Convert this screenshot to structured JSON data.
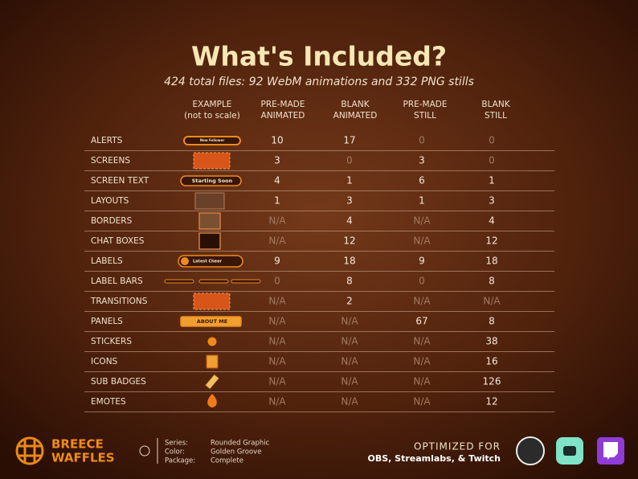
{
  "header": {
    "title": "What's Included?",
    "subtitle": "424 total files: 92 WebM animations and 332 PNG stills"
  },
  "table": {
    "columns": [
      [
        "EXAMPLE",
        "(not to scale)"
      ],
      [
        "PRE-MADE",
        "ANIMATED"
      ],
      [
        "BLANK",
        "ANIMATED"
      ],
      [
        "PRE-MADE",
        "STILL"
      ],
      [
        "BLANK",
        "STILL"
      ]
    ],
    "rows": [
      {
        "label": "ALERTS",
        "example_text": "New Follower",
        "values": [
          10,
          17,
          0,
          0
        ]
      },
      {
        "label": "SCREENS",
        "values": [
          3,
          0,
          3,
          0
        ]
      },
      {
        "label": "SCREEN TEXT",
        "example_text": "Starting Soon",
        "values": [
          4,
          1,
          6,
          1
        ]
      },
      {
        "label": "LAYOUTS",
        "values": [
          1,
          3,
          1,
          3
        ]
      },
      {
        "label": "BORDERS",
        "values": [
          "N/A",
          4,
          "N/A",
          4
        ]
      },
      {
        "label": "CHAT BOXES",
        "values": [
          "N/A",
          12,
          "N/A",
          12
        ]
      },
      {
        "label": "LABELS",
        "example_text": "Latest Cheer",
        "values": [
          9,
          18,
          9,
          18
        ]
      },
      {
        "label": "LABEL BARS",
        "values": [
          0,
          8,
          0,
          8
        ]
      },
      {
        "label": "TRANSITIONS",
        "values": [
          "N/A",
          2,
          "N/A",
          "N/A"
        ]
      },
      {
        "label": "PANELS",
        "example_text": "ABOUT ME",
        "values": [
          "N/A",
          "N/A",
          67,
          8
        ]
      },
      {
        "label": "STICKERS",
        "values": [
          "N/A",
          "N/A",
          "N/A",
          38
        ]
      },
      {
        "label": "ICONS",
        "values": [
          "N/A",
          "N/A",
          "N/A",
          16
        ]
      },
      {
        "label": "SUB BADGES",
        "values": [
          "N/A",
          "N/A",
          "N/A",
          126
        ]
      },
      {
        "label": "EMOTES",
        "values": [
          "N/A",
          "N/A",
          "N/A",
          12
        ]
      }
    ]
  },
  "footer": {
    "logo": [
      "BREECE",
      "WAFFLES"
    ],
    "info": [
      {
        "key": "Series:",
        "value": "Rounded Graphic"
      },
      {
        "key": "Color:",
        "value": "Golden Groove"
      },
      {
        "key": "Package:",
        "value": "Complete"
      }
    ],
    "optimized": "OPTIMIZED FOR",
    "platforms": "OBS, Streamlabs, & Twitch"
  }
}
